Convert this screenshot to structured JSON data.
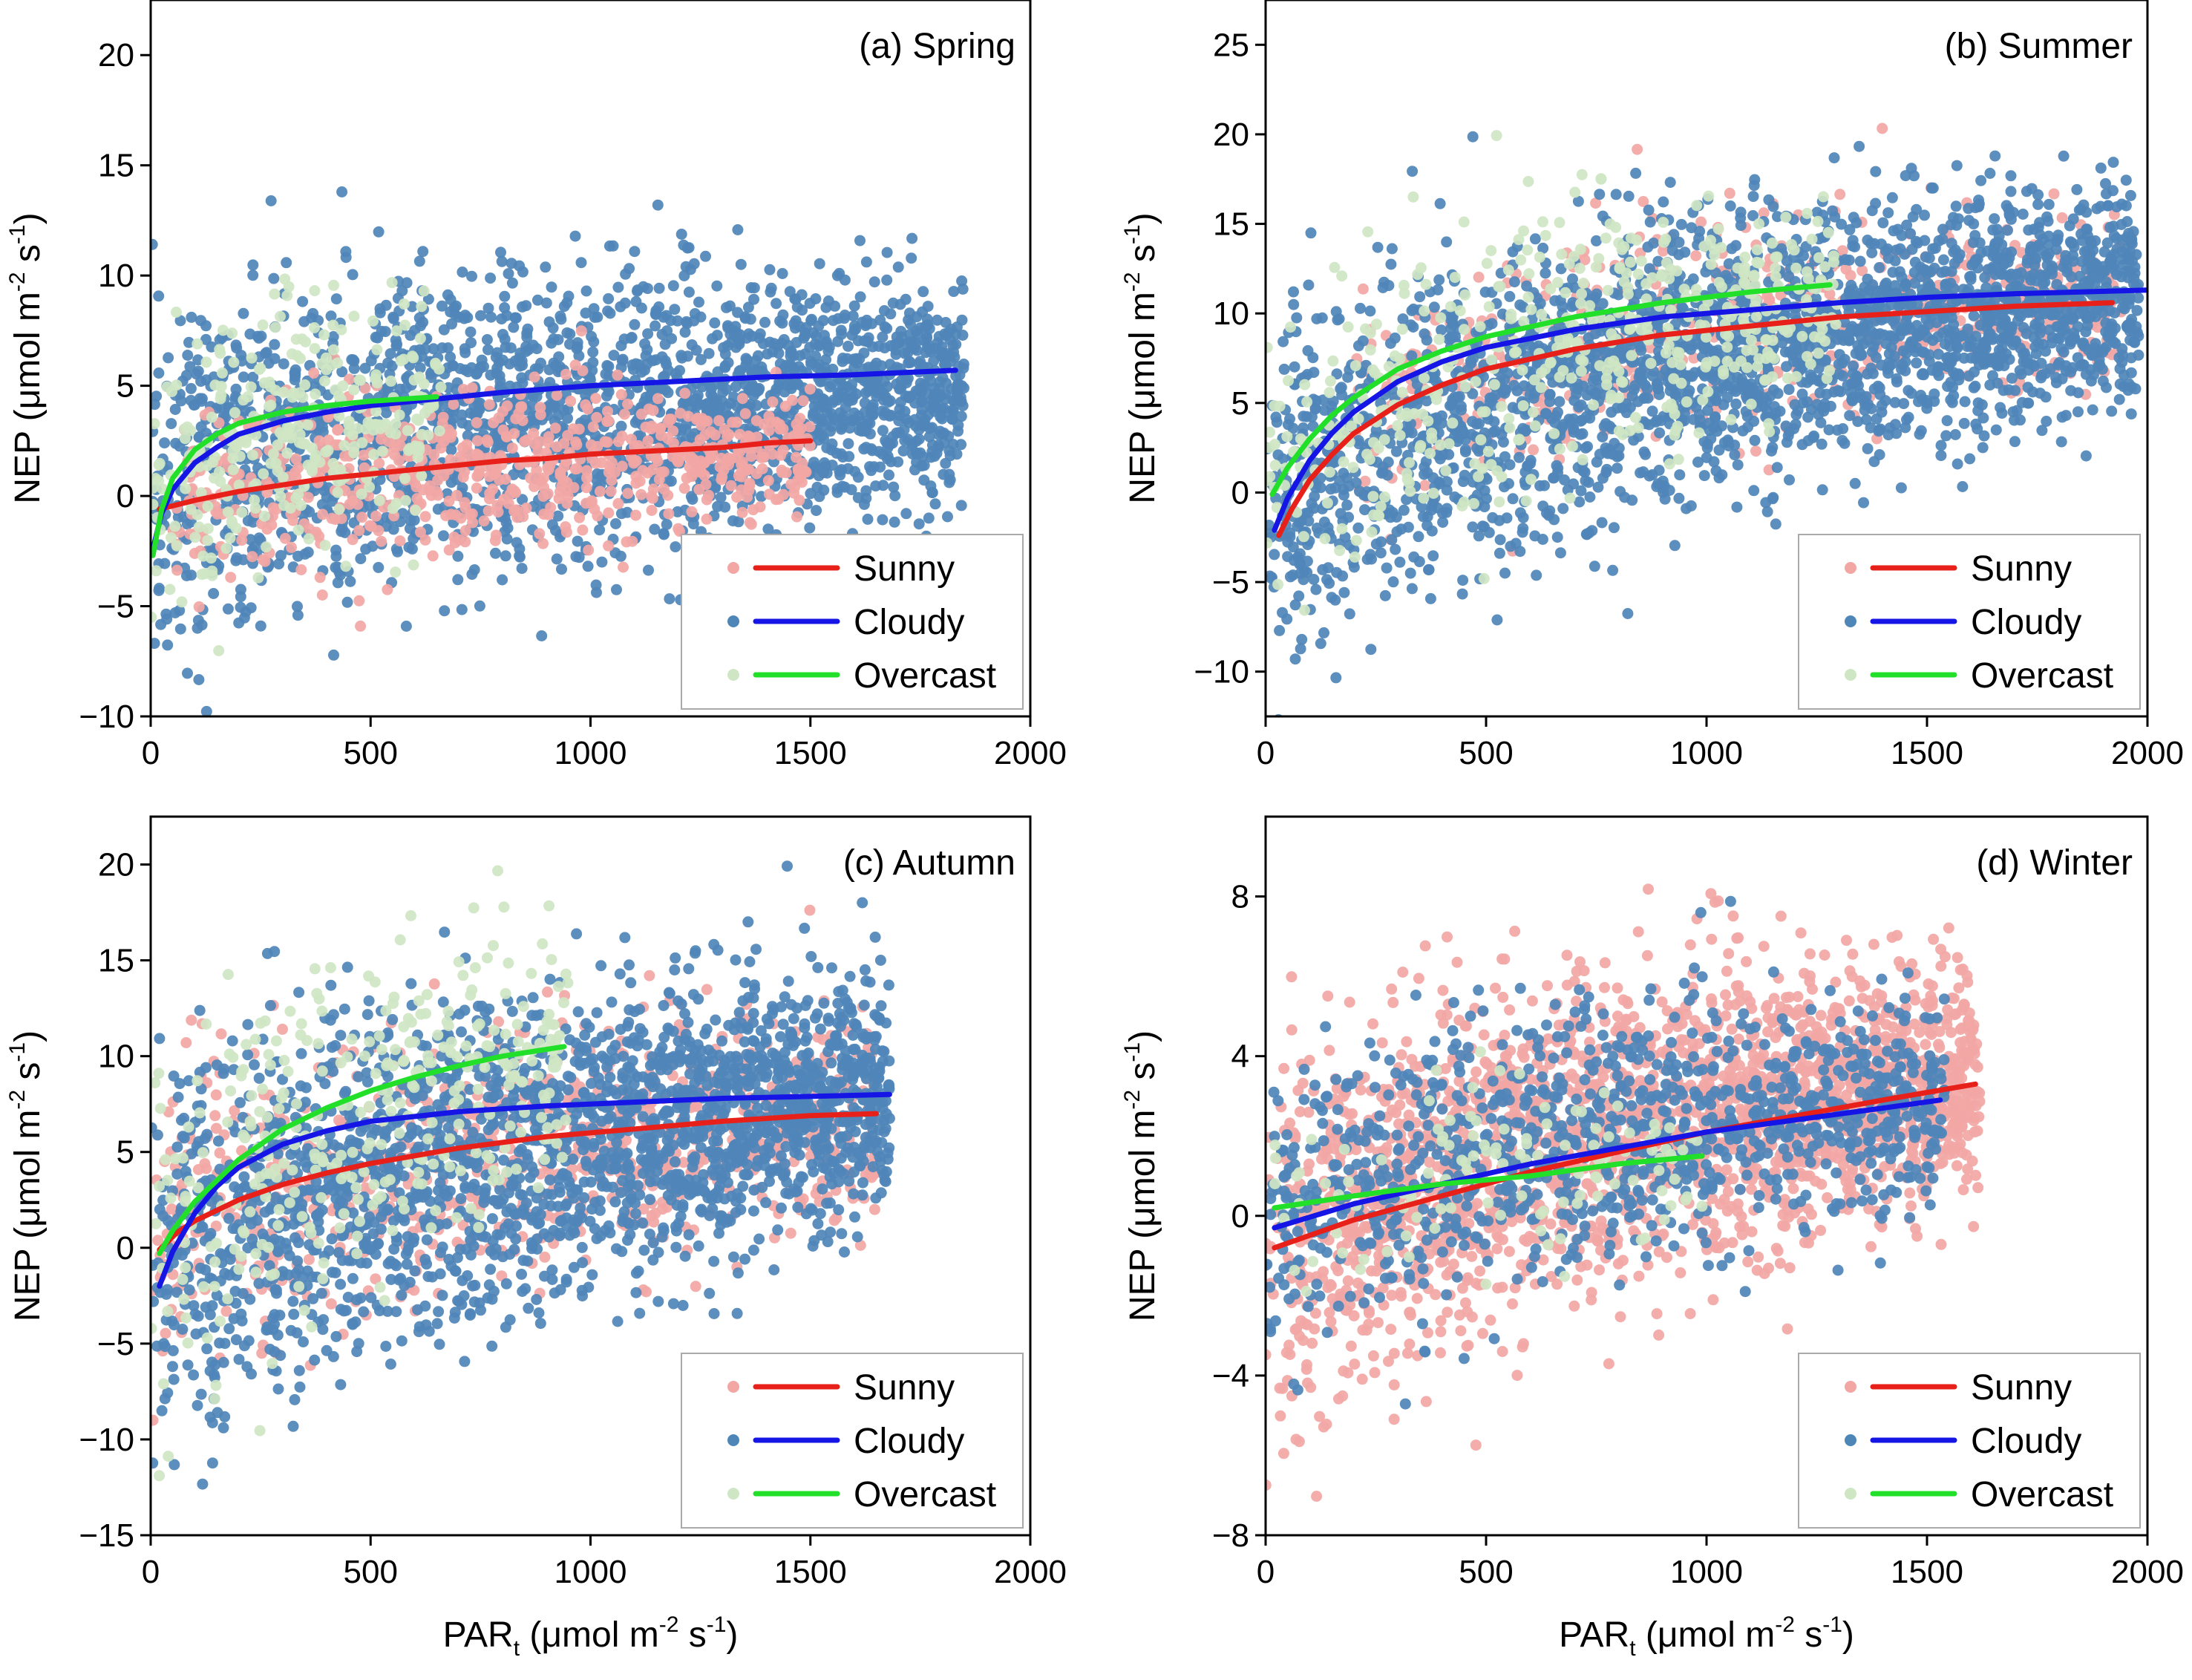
{
  "figure": {
    "xlabel_main": "PAR",
    "xlabel_sub": "t",
    "xlabel_unit_pre": " (μmol m",
    "xlabel_unit_exp1": "-2",
    "xlabel_unit_mid": " s",
    "xlabel_unit_exp2": "-1",
    "xlabel_unit_post": ")",
    "ylabel_main": "NEP (μmol m",
    "ylabel_exp1": "-2",
    "ylabel_mid": " s",
    "ylabel_exp2": "-1",
    "ylabel_post": ")"
  },
  "legend": {
    "entries": [
      {
        "label": "Sunny",
        "line_color": "#e8201a",
        "dot_color": "#f2a7a5"
      },
      {
        "label": "Cloudy",
        "line_color": "#1515e6",
        "dot_color": "#4f86b8"
      },
      {
        "label": "Overcast",
        "line_color": "#22e02a",
        "dot_color": "#cfe6c4"
      }
    ]
  },
  "chart_data": [
    {
      "type": "scatter",
      "title": "(a) Spring",
      "xlim": [
        0,
        2000
      ],
      "ylim": [
        -10,
        22.5
      ],
      "xticks": [
        0,
        500,
        1000,
        1500,
        2000
      ],
      "xtick_labels": [
        "0",
        "500",
        "1000",
        "1500",
        "2000"
      ],
      "yticks": [
        -10,
        -5,
        0,
        5,
        10,
        15,
        20
      ],
      "ytick_labels": [
        "−10",
        "−5",
        "0",
        "5",
        "10",
        "15",
        "20"
      ],
      "legend_position": "lower-right",
      "scatter_clouds": [
        {
          "series": "Cloudy",
          "count": 2400,
          "x_range": [
            0,
            1850
          ],
          "y_center": [
            0.5,
            4.6
          ],
          "spread": 3.2
        },
        {
          "series": "Sunny",
          "count": 700,
          "x_range": [
            50,
            1500
          ],
          "y_center": [
            -0.5,
            2.0
          ],
          "spread": 1.8
        },
        {
          "series": "Overcast",
          "count": 300,
          "x_range": [
            0,
            660
          ],
          "y_center": [
            -1.0,
            4.5
          ],
          "spread": 3.0
        }
      ],
      "series": [
        {
          "name": "Sunny",
          "x": [
            20,
            100,
            200,
            300,
            400,
            500,
            600,
            700,
            800,
            900,
            1000,
            1100,
            1200,
            1300,
            1400,
            1500
          ],
          "values": [
            -0.6,
            -0.2,
            0.2,
            0.5,
            0.8,
            1.0,
            1.2,
            1.4,
            1.6,
            1.7,
            1.9,
            2.0,
            2.1,
            2.2,
            2.4,
            2.5
          ]
        },
        {
          "name": "Cloudy",
          "x": [
            5,
            25,
            50,
            100,
            150,
            200,
            300,
            400,
            500,
            650,
            800,
            1000,
            1200,
            1400,
            1600,
            1830
          ],
          "values": [
            -2.4,
            -0.8,
            0.3,
            1.5,
            2.2,
            2.8,
            3.4,
            3.8,
            4.1,
            4.4,
            4.7,
            5.0,
            5.2,
            5.4,
            5.5,
            5.7
          ]
        },
        {
          "name": "Overcast",
          "x": [
            5,
            25,
            50,
            100,
            150,
            200,
            300,
            400,
            500,
            650
          ],
          "values": [
            -2.7,
            -0.6,
            0.8,
            2.1,
            2.8,
            3.3,
            3.8,
            4.1,
            4.3,
            4.5
          ]
        }
      ]
    },
    {
      "type": "scatter",
      "title": "(b) Summer",
      "xlim": [
        0,
        2000
      ],
      "ylim": [
        -12.5,
        27.5
      ],
      "xticks": [
        0,
        500,
        1000,
        1500,
        2000
      ],
      "xtick_labels": [
        "0",
        "500",
        "1000",
        "1500",
        "2000"
      ],
      "yticks": [
        -10,
        -5,
        0,
        5,
        10,
        15,
        20,
        25
      ],
      "ytick_labels": [
        "−10",
        "−5",
        "0",
        "5",
        "10",
        "15",
        "20",
        "25"
      ],
      "legend_position": "lower-right",
      "scatter_clouds": [
        {
          "series": "Sunny",
          "count": 600,
          "x_range": [
            200,
            1950
          ],
          "y_center": [
            5.0,
            11.0
          ],
          "spread": 3.0
        },
        {
          "series": "Cloudy",
          "count": 2700,
          "x_range": [
            0,
            1980
          ],
          "y_center": [
            -1.0,
            11.0
          ],
          "spread": 3.8
        },
        {
          "series": "Overcast",
          "count": 500,
          "x_range": [
            0,
            1300
          ],
          "y_center": [
            0.0,
            11.5
          ],
          "spread": 3.8
        }
      ],
      "series": [
        {
          "name": "Sunny",
          "x": [
            30,
            60,
            100,
            150,
            200,
            300,
            400,
            500,
            700,
            900,
            1100,
            1300,
            1500,
            1700,
            1920
          ],
          "values": [
            -2.4,
            -0.9,
            0.7,
            2.1,
            3.3,
            4.9,
            6.0,
            6.9,
            8.0,
            8.8,
            9.3,
            9.8,
            10.1,
            10.4,
            10.6
          ]
        },
        {
          "name": "Cloudy",
          "x": [
            20,
            50,
            100,
            150,
            200,
            300,
            400,
            500,
            700,
            900,
            1100,
            1300,
            1500,
            1700,
            2000
          ],
          "values": [
            -2.1,
            -0.3,
            1.8,
            3.3,
            4.5,
            6.2,
            7.3,
            8.1,
            9.1,
            9.8,
            10.2,
            10.6,
            10.9,
            11.1,
            11.3
          ]
        },
        {
          "name": "Overcast",
          "x": [
            15,
            50,
            100,
            150,
            200,
            300,
            400,
            500,
            700,
            900,
            1100,
            1280
          ],
          "values": [
            -0.1,
            1.4,
            3.0,
            4.3,
            5.3,
            6.9,
            7.9,
            8.7,
            9.8,
            10.6,
            11.2,
            11.6
          ]
        }
      ]
    },
    {
      "type": "scatter",
      "title": "(c) Autumn",
      "xlim": [
        0,
        2000
      ],
      "ylim": [
        -15,
        22.5
      ],
      "xticks": [
        0,
        500,
        1000,
        1500,
        2000
      ],
      "xtick_labels": [
        "0",
        "500",
        "1000",
        "1500",
        "2000"
      ],
      "yticks": [
        -15,
        -10,
        -5,
        0,
        5,
        10,
        15,
        20
      ],
      "ytick_labels": [
        "−15",
        "−10",
        "−5",
        "0",
        "5",
        "10",
        "15",
        "20"
      ],
      "legend_position": "lower-right",
      "scatter_clouds": [
        {
          "series": "Sunny",
          "count": 900,
          "x_range": [
            0,
            1650
          ],
          "y_center": [
            0.0,
            7.0
          ],
          "spread": 3.2
        },
        {
          "series": "Cloudy",
          "count": 2300,
          "x_range": [
            0,
            1680
          ],
          "y_center": [
            -1.5,
            8.0
          ],
          "spread": 4.0
        },
        {
          "series": "Overcast",
          "count": 350,
          "x_range": [
            0,
            950
          ],
          "y_center": [
            0.0,
            10.0
          ],
          "spread": 4.5
        }
      ],
      "series": [
        {
          "name": "Sunny",
          "x": [
            20,
            60,
            100,
            200,
            300,
            400,
            500,
            700,
            900,
            1100,
            1300,
            1500,
            1650
          ],
          "values": [
            -0.1,
            0.8,
            1.4,
            2.5,
            3.3,
            3.9,
            4.4,
            5.2,
            5.8,
            6.2,
            6.6,
            6.9,
            7.0
          ]
        },
        {
          "name": "Cloudy",
          "x": [
            20,
            50,
            100,
            150,
            200,
            300,
            400,
            500,
            700,
            900,
            1100,
            1300,
            1500,
            1680
          ],
          "values": [
            -2.0,
            -0.2,
            1.8,
            3.2,
            4.2,
            5.4,
            6.1,
            6.6,
            7.1,
            7.4,
            7.6,
            7.8,
            7.9,
            8.0
          ]
        },
        {
          "name": "Overcast",
          "x": [
            20,
            50,
            100,
            200,
            300,
            400,
            500,
            600,
            700,
            800,
            940
          ],
          "values": [
            -0.3,
            0.9,
            2.4,
            4.6,
            6.2,
            7.3,
            8.2,
            8.9,
            9.5,
            10.0,
            10.5
          ]
        }
      ]
    },
    {
      "type": "scatter",
      "title": "(d) Winter",
      "xlim": [
        0,
        2000
      ],
      "ylim": [
        -8,
        10
      ],
      "xticks": [
        0,
        500,
        1000,
        1500,
        2000
      ],
      "xtick_labels": [
        "0",
        "500",
        "1000",
        "1500",
        "2000"
      ],
      "yticks": [
        -8,
        -4,
        0,
        4,
        8
      ],
      "ytick_labels": [
        "−8",
        "−4",
        "0",
        "4",
        "8"
      ],
      "legend_position": "lower-right",
      "scatter_clouds": [
        {
          "series": "Sunny",
          "count": 2300,
          "x_range": [
            0,
            1620
          ],
          "y_center": [
            -0.8,
            3.3
          ],
          "spread": 1.9
        },
        {
          "series": "Cloudy",
          "count": 1100,
          "x_range": [
            0,
            1540
          ],
          "y_center": [
            -0.3,
            2.9
          ],
          "spread": 1.6
        },
        {
          "series": "Overcast",
          "count": 120,
          "x_range": [
            0,
            1000
          ],
          "y_center": [
            0.2,
            1.5
          ],
          "spread": 1.2
        }
      ],
      "series": [
        {
          "name": "Sunny",
          "x": [
            20,
            200,
            400,
            600,
            800,
            1000,
            1200,
            1400,
            1610
          ],
          "values": [
            -0.8,
            -0.1,
            0.5,
            1.1,
            1.6,
            2.1,
            2.5,
            2.9,
            3.3
          ]
        },
        {
          "name": "Cloudy",
          "x": [
            20,
            200,
            400,
            600,
            800,
            1000,
            1200,
            1400,
            1530
          ],
          "values": [
            -0.3,
            0.3,
            0.8,
            1.3,
            1.7,
            2.1,
            2.4,
            2.7,
            2.9
          ]
        },
        {
          "name": "Overcast",
          "x": [
            20,
            200,
            400,
            600,
            800,
            990
          ],
          "values": [
            0.2,
            0.5,
            0.8,
            1.0,
            1.3,
            1.5
          ]
        }
      ]
    }
  ]
}
